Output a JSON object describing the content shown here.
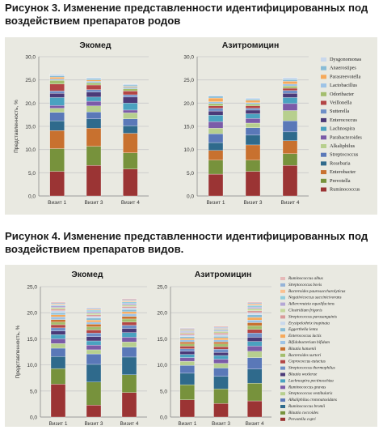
{
  "figure3": {
    "title_line1": "Рисунок 3. Изменение представленности идентифицированных под",
    "title_line2": "воздействием препаратов родов"
  },
  "figure4": {
    "title_line1": "Рисунок 4. Изменение представленности идентифицированных под",
    "title_line2": "воздействием препаратов видов."
  },
  "colors": {
    "panel_bg": "#e9e9e1",
    "gridline": "#c9c9c9"
  },
  "chart_data": [
    {
      "type": "bar",
      "stacked": true,
      "title": "Экомед",
      "ylabel": "Представленность, %",
      "ylim": [
        0,
        30
      ],
      "yticks": [
        "0,0",
        "5,0",
        "10,0",
        "15,0",
        "20,0",
        "25,0",
        "30,0"
      ],
      "categories": [
        "Визит 1",
        "Визит 3",
        "Визит 4"
      ],
      "series": [
        {
          "name": "Ruminococcus",
          "color": "#9b3434",
          "values": [
            5.3,
            6.6,
            5.8
          ]
        },
        {
          "name": "Prevotella",
          "color": "#77923c",
          "values": [
            4.9,
            4.1,
            3.5
          ]
        },
        {
          "name": "Enterobacter",
          "color": "#c8712f",
          "values": [
            3.9,
            3.9,
            4.2
          ]
        },
        {
          "name": "Roseburia",
          "color": "#2f6a8c",
          "values": [
            2.1,
            2.0,
            1.6
          ]
        },
        {
          "name": "Streptococcus",
          "color": "#5a78b8",
          "values": [
            1.8,
            1.5,
            1.5
          ]
        },
        {
          "name": "Alkaliphilus",
          "color": "#b7cf8e",
          "values": [
            0.9,
            1.3,
            1.3
          ]
        },
        {
          "name": "Parabacteroides",
          "color": "#7b5ba8",
          "values": [
            0.6,
            1.0,
            0.6
          ]
        },
        {
          "name": "Lachnospira",
          "color": "#4aa2c0",
          "values": [
            1.7,
            0.9,
            1.5
          ]
        },
        {
          "name": "Enterococcus",
          "color": "#4b3a78",
          "values": [
            0.9,
            1.1,
            1.3
          ]
        },
        {
          "name": "Sutterella",
          "color": "#6f8fc7",
          "values": [
            0.5,
            0.5,
            0.5
          ]
        },
        {
          "name": "Veillonella",
          "color": "#b34545",
          "values": [
            1.5,
            1.0,
            0.8
          ]
        },
        {
          "name": "Odoribacter",
          "color": "#a3be6d",
          "values": [
            0.8,
            0.5,
            0.5
          ]
        },
        {
          "name": "Lactobacillus",
          "color": "#9dc3e6",
          "values": [
            0.3,
            0.3,
            0.3
          ]
        },
        {
          "name": "Parasreevotella",
          "color": "#f6a95a",
          "values": [
            0.4,
            0.3,
            0.2
          ]
        },
        {
          "name": "Anaerostipes",
          "color": "#88bcd6",
          "values": [
            0.3,
            0.3,
            0.3
          ]
        },
        {
          "name": "Dysgonomonas",
          "color": "#c9d8ec",
          "values": [
            0.3,
            0.2,
            0.2
          ]
        }
      ]
    },
    {
      "type": "bar",
      "stacked": true,
      "title": "Азитромицин",
      "ylim": [
        0,
        30
      ],
      "yticks": [
        "0,0",
        "5,0",
        "10,0",
        "15,0",
        "20,0",
        "25,0",
        "30,0"
      ],
      "categories": [
        "Визит 1",
        "Визит 3",
        "Визит 4"
      ],
      "series": [
        {
          "name": "Ruminococcus",
          "color": "#9b3434",
          "values": [
            4.7,
            5.3,
            6.6
          ]
        },
        {
          "name": "Prevotella",
          "color": "#77923c",
          "values": [
            3.0,
            2.4,
            2.5
          ]
        },
        {
          "name": "Enterobacter",
          "color": "#c8712f",
          "values": [
            2.1,
            3.3,
            2.8
          ]
        },
        {
          "name": "Roseburia",
          "color": "#2f6a8c",
          "values": [
            1.7,
            2.1,
            1.9
          ]
        },
        {
          "name": "Streptococcus",
          "color": "#5a78b8",
          "values": [
            1.9,
            1.6,
            2.4
          ]
        },
        {
          "name": "Alkaliphilus",
          "color": "#b7cf8e",
          "values": [
            1.2,
            1.0,
            2.2
          ]
        },
        {
          "name": "Parabacteroides",
          "color": "#7b5ba8",
          "values": [
            1.4,
            1.0,
            1.5
          ]
        },
        {
          "name": "Lachnospira",
          "color": "#4aa2c0",
          "values": [
            1.4,
            1.0,
            1.3
          ]
        },
        {
          "name": "Enterococcus",
          "color": "#4b3a78",
          "values": [
            0.9,
            0.8,
            0.9
          ]
        },
        {
          "name": "Sutterella",
          "color": "#6f8fc7",
          "values": [
            0.6,
            0.4,
            0.6
          ]
        },
        {
          "name": "Veillonella",
          "color": "#b34545",
          "values": [
            0.5,
            0.5,
            0.5
          ]
        },
        {
          "name": "Odoribacter",
          "color": "#a3be6d",
          "values": [
            0.5,
            0.4,
            0.5
          ]
        },
        {
          "name": "Lactobacillus",
          "color": "#9dc3e6",
          "values": [
            0.4,
            0.3,
            0.4
          ]
        },
        {
          "name": "Parasreevotella",
          "color": "#f6a95a",
          "values": [
            0.8,
            0.5,
            0.6
          ]
        },
        {
          "name": "Anaerostipes",
          "color": "#88bcd6",
          "values": [
            0.4,
            0.3,
            0.4
          ]
        },
        {
          "name": "Dysgonomonas",
          "color": "#c9d8ec",
          "values": [
            0.2,
            0.2,
            0.4
          ]
        }
      ]
    },
    {
      "type": "bar",
      "stacked": true,
      "title": "Экомед",
      "ylabel": "Представленность, %",
      "ylim": [
        0,
        25
      ],
      "yticks": [
        "0,0",
        "5,0",
        "10,0",
        "15,0",
        "20,0",
        "25,0"
      ],
      "categories": [
        "Визит 1",
        "Визит 3",
        "Визит 4"
      ],
      "series": [
        {
          "name": "Prevotella copri",
          "color": "#9b3434",
          "values": [
            6.3,
            2.3,
            4.7
          ]
        },
        {
          "name": "Blautia coccoides",
          "color": "#77923c",
          "values": [
            3.0,
            4.4,
            3.4
          ]
        },
        {
          "name": "Ruminococcus bromii",
          "color": "#2f6a8c",
          "values": [
            2.3,
            3.4,
            3.4
          ]
        },
        {
          "name": "Alkaliphilus crotonatoxidans",
          "color": "#5a78b8",
          "values": [
            1.6,
            2.0,
            1.9
          ]
        },
        {
          "name": "Streptococcus vestibularis",
          "color": "#b7cf8e",
          "values": [
            0.9,
            0.8,
            1.0
          ]
        },
        {
          "name": "Ruminococcus gnavus",
          "color": "#7b5ba8",
          "values": [
            0.9,
            0.9,
            0.9
          ]
        },
        {
          "name": "Lachnospira pectinoschiza",
          "color": "#4aa2c0",
          "values": [
            0.8,
            0.8,
            0.9
          ]
        },
        {
          "name": "Blautia wexlerae",
          "color": "#4b3a78",
          "values": [
            0.7,
            0.8,
            0.8
          ]
        },
        {
          "name": "Streptococcus thermophilus",
          "color": "#6f8fc7",
          "values": [
            0.6,
            0.7,
            0.6
          ]
        },
        {
          "name": "Coprococcus eutactus",
          "color": "#b34545",
          "values": [
            0.6,
            0.6,
            0.6
          ]
        },
        {
          "name": "Bacteroides xurtori",
          "color": "#a3be6d",
          "values": [
            0.5,
            0.6,
            0.6
          ]
        },
        {
          "name": "Blautia hansenii",
          "color": "#c8712f",
          "values": [
            0.5,
            0.5,
            0.5
          ]
        },
        {
          "name": "Bifidobacterium bifidum",
          "color": "#9dc3e6",
          "values": [
            0.5,
            0.4,
            0.5
          ]
        },
        {
          "name": "Enterococcus lactis",
          "color": "#f6a95a",
          "values": [
            0.4,
            0.4,
            0.4
          ]
        },
        {
          "name": "Eggerthella lenta",
          "color": "#88bcd6",
          "values": [
            0.4,
            0.4,
            0.4
          ]
        },
        {
          "name": "Erysipelothrix inopinata",
          "color": "#c9d8ec",
          "values": [
            0.4,
            0.3,
            0.3
          ]
        },
        {
          "name": "Streptococcus parasanguinis",
          "color": "#d99a9a",
          "values": [
            0.3,
            0.3,
            0.3
          ]
        },
        {
          "name": "Clostridium frigoris",
          "color": "#c4d79b",
          "values": [
            0.3,
            0.3,
            0.3
          ]
        },
        {
          "name": "Adlercreutzia equolifaciens",
          "color": "#b4a7d6",
          "values": [
            0.3,
            0.3,
            0.3
          ]
        },
        {
          "name": "Negativicoccus succinicivorans",
          "color": "#92cddc",
          "values": [
            0.2,
            0.3,
            0.3
          ]
        },
        {
          "name": "Bacteroides paurosaccharolyticus",
          "color": "#fac090",
          "values": [
            0.2,
            0.2,
            0.2
          ]
        },
        {
          "name": "Streptococcus bovis",
          "color": "#95b3d7",
          "values": [
            0.2,
            0.2,
            0.2
          ]
        },
        {
          "name": "Ruminococcus albus",
          "color": "#e6b9b8",
          "values": [
            0.2,
            0.1,
            0.2
          ]
        }
      ]
    },
    {
      "type": "bar",
      "stacked": true,
      "title": "Азитромицин",
      "ylim": [
        0,
        25
      ],
      "yticks": [
        "0,0",
        "5,0",
        "10,0",
        "15,0",
        "20,0",
        "25,0"
      ],
      "categories": [
        "Визит 1",
        "Визит 3",
        "Визит 4"
      ],
      "series": [
        {
          "name": "Prevotella copri",
          "color": "#9b3434",
          "values": [
            3.3,
            2.6,
            3.1
          ]
        },
        {
          "name": "Blautia coccoides",
          "color": "#77923c",
          "values": [
            2.9,
            2.8,
            3.4
          ]
        },
        {
          "name": "Ruminococcus bromii",
          "color": "#2f6a8c",
          "values": [
            2.2,
            2.4,
            2.7
          ]
        },
        {
          "name": "Alkaliphilus crotonatoxidans",
          "color": "#5a78b8",
          "values": [
            1.5,
            1.6,
            2.2
          ]
        },
        {
          "name": "Streptococcus vestibularis",
          "color": "#b7cf8e",
          "values": [
            0.8,
            0.9,
            1.2
          ]
        },
        {
          "name": "Ruminococcus gnavus",
          "color": "#7b5ba8",
          "values": [
            0.7,
            0.8,
            1.0
          ]
        },
        {
          "name": "Lachnospira pectinoschiza",
          "color": "#4aa2c0",
          "values": [
            0.6,
            0.7,
            0.9
          ]
        },
        {
          "name": "Blautia wexlerae",
          "color": "#4b3a78",
          "values": [
            0.6,
            0.6,
            0.8
          ]
        },
        {
          "name": "Streptococcus thermophilus",
          "color": "#6f8fc7",
          "values": [
            0.5,
            0.6,
            0.8
          ]
        },
        {
          "name": "Coprococcus eutactus",
          "color": "#b34545",
          "values": [
            0.5,
            0.5,
            0.7
          ]
        },
        {
          "name": "Bacteroides xurtori",
          "color": "#a3be6d",
          "values": [
            0.4,
            0.5,
            0.7
          ]
        },
        {
          "name": "Blautia hansenii",
          "color": "#c8712f",
          "values": [
            0.4,
            0.4,
            0.6
          ]
        },
        {
          "name": "Bifidobacterium bifidum",
          "color": "#9dc3e6",
          "values": [
            0.4,
            0.4,
            0.5
          ]
        },
        {
          "name": "Enterococcus lactis",
          "color": "#f6a95a",
          "values": [
            0.3,
            0.4,
            0.5
          ]
        },
        {
          "name": "Eggerthella lenta",
          "color": "#88bcd6",
          "values": [
            0.3,
            0.3,
            0.5
          ]
        },
        {
          "name": "Erysipelothrix inopinata",
          "color": "#c9d8ec",
          "values": [
            0.3,
            0.3,
            0.4
          ]
        },
        {
          "name": "Streptococcus parasanguinis",
          "color": "#d99a9a",
          "values": [
            0.3,
            0.3,
            0.4
          ]
        },
        {
          "name": "Clostridium frigoris",
          "color": "#c4d79b",
          "values": [
            0.2,
            0.3,
            0.4
          ]
        },
        {
          "name": "Adlercreutzia equolifaciens",
          "color": "#b4a7d6",
          "values": [
            0.2,
            0.2,
            0.3
          ]
        },
        {
          "name": "Negativicoccus succinicivorans",
          "color": "#92cddc",
          "values": [
            0.2,
            0.2,
            0.3
          ]
        },
        {
          "name": "Bacteroides paurosaccharolyticus",
          "color": "#fac090",
          "values": [
            0.2,
            0.2,
            0.3
          ]
        },
        {
          "name": "Streptococcus bovis",
          "color": "#95b3d7",
          "values": [
            0.2,
            0.2,
            0.2
          ]
        },
        {
          "name": "Ruminococcus albus",
          "color": "#e6b9b8",
          "values": [
            0.1,
            0.2,
            0.2
          ]
        }
      ]
    }
  ]
}
